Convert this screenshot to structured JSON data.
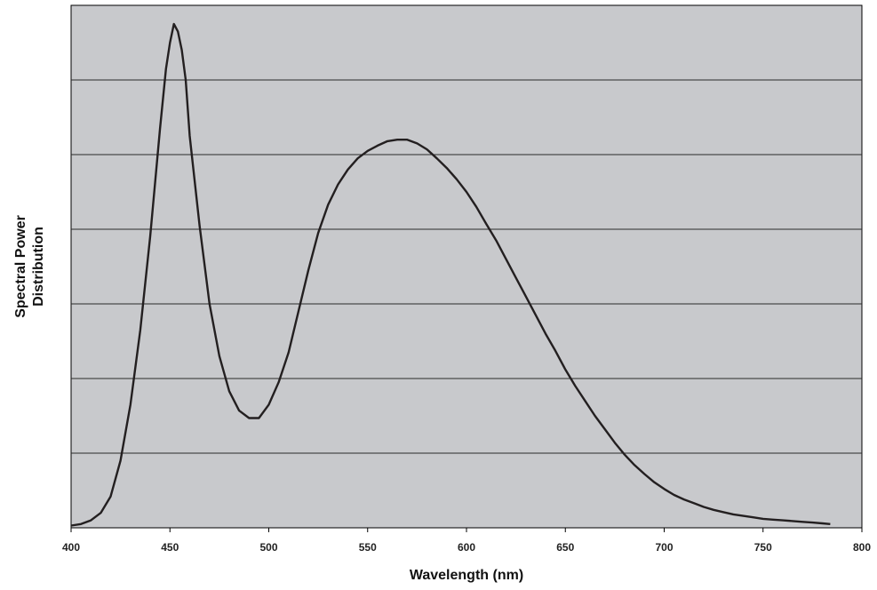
{
  "chart_data": {
    "type": "line",
    "title": "",
    "xlabel": "Wavelength (nm)",
    "ylabel": [
      "Spectral Power",
      "Distribution"
    ],
    "xlim": [
      400,
      800
    ],
    "ylim": [
      0,
      7
    ],
    "x_ticks": [
      400,
      450,
      500,
      550,
      600,
      650,
      700,
      750,
      800
    ],
    "y_gridlines": [
      1,
      2,
      3,
      4,
      5,
      6
    ],
    "y_tick_labels_shown": false,
    "grid": "horizontal",
    "legend": "none",
    "colors": {
      "plot_background": "#c8c9cc",
      "line": "#231f20",
      "grid": "#2a2a2a"
    },
    "series": [
      {
        "x": [
          400,
          405,
          410,
          415,
          420,
          425,
          430,
          435,
          440,
          445,
          448,
          450,
          452,
          454,
          456,
          458,
          460,
          465,
          470,
          475,
          480,
          485,
          490,
          495,
          500,
          505,
          510,
          515,
          520,
          525,
          530,
          535,
          540,
          545,
          550,
          555,
          560,
          565,
          570,
          575,
          580,
          585,
          590,
          595,
          600,
          605,
          610,
          615,
          620,
          625,
          630,
          635,
          640,
          645,
          650,
          655,
          660,
          665,
          670,
          675,
          680,
          685,
          690,
          695,
          700,
          705,
          710,
          715,
          720,
          725,
          730,
          735,
          740,
          745,
          750,
          755,
          760,
          765,
          770,
          775,
          780,
          784
        ],
        "y": [
          0.03,
          0.05,
          0.1,
          0.2,
          0.42,
          0.9,
          1.65,
          2.65,
          3.9,
          5.35,
          6.15,
          6.5,
          6.75,
          6.65,
          6.4,
          6.0,
          5.25,
          4.05,
          3.0,
          2.3,
          1.83,
          1.57,
          1.47,
          1.47,
          1.65,
          1.95,
          2.35,
          2.9,
          3.45,
          3.95,
          4.33,
          4.6,
          4.8,
          4.95,
          5.05,
          5.12,
          5.18,
          5.2,
          5.2,
          5.15,
          5.07,
          4.95,
          4.82,
          4.67,
          4.5,
          4.3,
          4.07,
          3.85,
          3.6,
          3.35,
          3.1,
          2.85,
          2.6,
          2.37,
          2.12,
          1.9,
          1.7,
          1.5,
          1.32,
          1.14,
          0.98,
          0.84,
          0.72,
          0.61,
          0.52,
          0.44,
          0.38,
          0.33,
          0.28,
          0.24,
          0.21,
          0.18,
          0.16,
          0.14,
          0.12,
          0.11,
          0.1,
          0.09,
          0.08,
          0.07,
          0.06,
          0.05
        ]
      }
    ]
  }
}
